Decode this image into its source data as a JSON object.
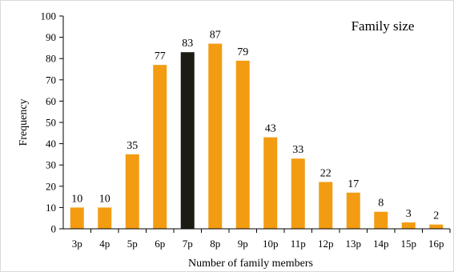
{
  "chart_data": {
    "type": "bar",
    "title": "Family size",
    "xlabel": "Number of family members",
    "ylabel": "Frequency",
    "categories": [
      "3p",
      "4p",
      "5p",
      "6p",
      "7p",
      "8p",
      "9p",
      "10p",
      "11p",
      "12p",
      "13p",
      "14p",
      "15p",
      "16p"
    ],
    "values": [
      10,
      10,
      35,
      77,
      83,
      87,
      79,
      43,
      33,
      22,
      17,
      8,
      3,
      2
    ],
    "ylim": [
      0,
      100
    ],
    "yticks": [
      0,
      10,
      20,
      30,
      40,
      50,
      60,
      70,
      80,
      90,
      100
    ],
    "grid": false,
    "colors": {
      "bar": "#f39c12",
      "highlight": "#1c1c14",
      "axis": "#000000",
      "frame": "#d9d9d9"
    },
    "highlight_category": "7p"
  }
}
